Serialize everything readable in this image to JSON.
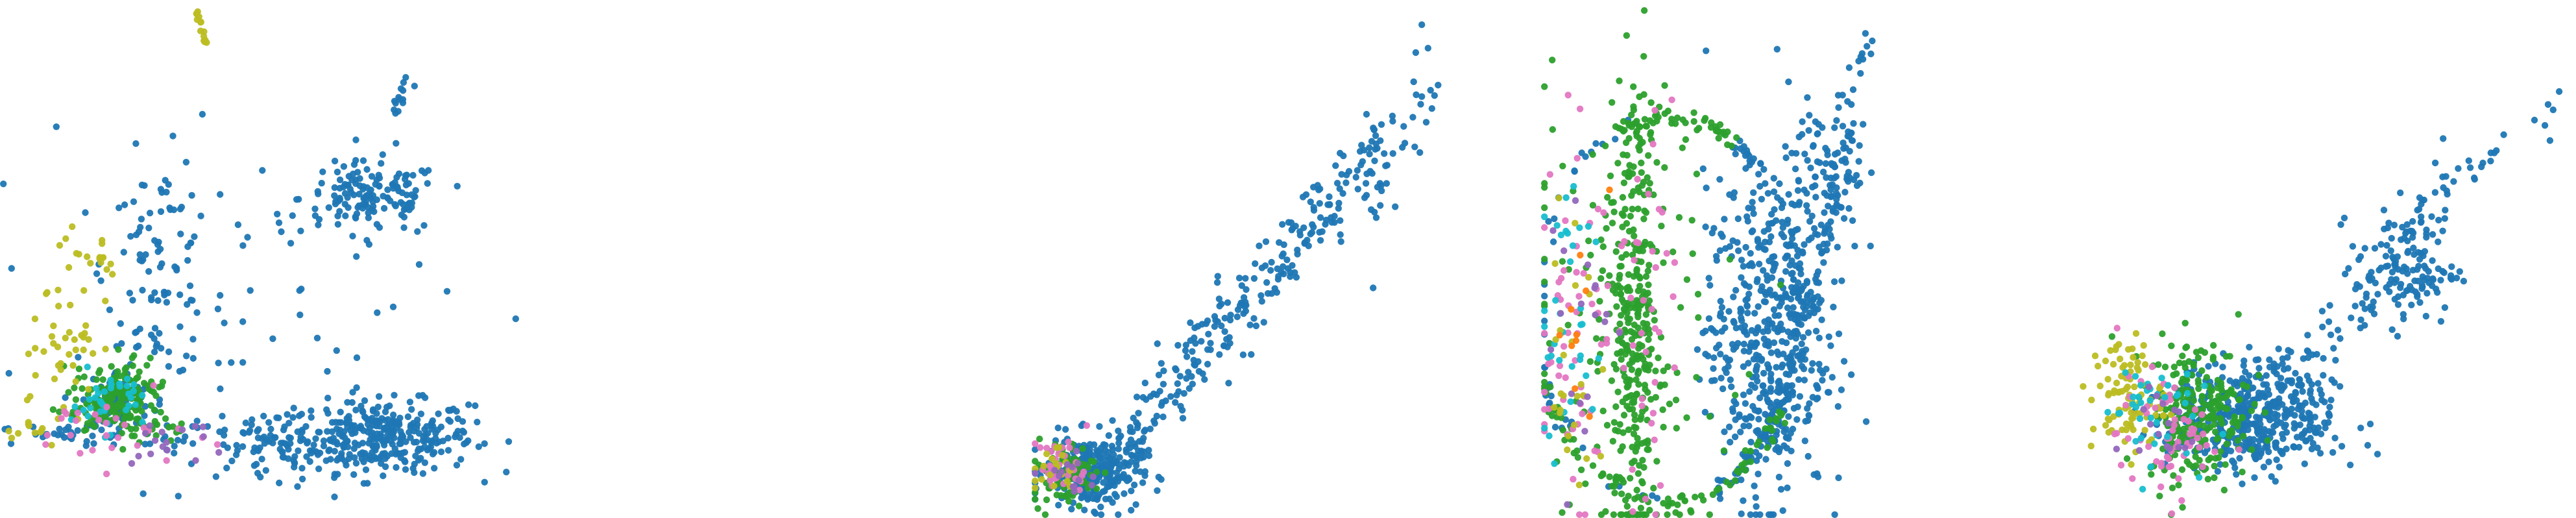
{
  "figure": {
    "panel_count": 4
  },
  "colors": {
    "blue": "#1f77b4",
    "green": "#2ca02c",
    "olive": "#bcbd22",
    "cyan": "#17becf",
    "pink": "#e377c2",
    "purple": "#9467bd",
    "orange": "#ff7f0e"
  },
  "chart_data": [
    {
      "type": "scatter",
      "title": "",
      "xlabel": "",
      "ylabel": "",
      "axes": "hidden",
      "grid": false,
      "xlim": [
        0,
        10
      ],
      "ylim": [
        0,
        10
      ],
      "series": [
        {
          "color": "blue",
          "clusters": [
            {
              "shape": "gauss",
              "cx": 7.4,
              "cy": 1.5,
              "sx": 0.9,
              "sy": 0.35,
              "n": 320
            },
            {
              "shape": "gauss",
              "cx": 7.2,
              "cy": 6.2,
              "sx": 0.7,
              "sy": 0.35,
              "n": 140
            },
            {
              "shape": "gauss",
              "cx": 3.0,
              "cy": 4.8,
              "sx": 0.5,
              "sy": 1.1,
              "n": 90
            },
            {
              "shape": "gauss",
              "cx": 5.2,
              "cy": 1.3,
              "sx": 0.9,
              "sy": 0.35,
              "n": 90
            },
            {
              "shape": "gauss",
              "cx": 2.2,
              "cy": 2.2,
              "sx": 0.35,
              "sy": 0.3,
              "n": 70
            },
            {
              "shape": "line",
              "x0": 7.6,
              "y0": 7.8,
              "x1": 8.0,
              "y1": 8.6,
              "jitter": 0.05,
              "n": 14
            },
            {
              "shape": "gauss",
              "cx": 4.5,
              "cy": 3.6,
              "sx": 2.4,
              "sy": 1.8,
              "n": 70
            },
            {
              "shape": "line",
              "x0": 0.1,
              "y0": 1.6,
              "x1": 3.5,
              "y1": 1.5,
              "jitter": 0.12,
              "n": 40
            }
          ]
        },
        {
          "color": "green",
          "clusters": [
            {
              "shape": "gauss",
              "cx": 2.2,
              "cy": 2.3,
              "sx": 0.4,
              "sy": 0.35,
              "n": 170
            },
            {
              "shape": "line",
              "x0": 1.0,
              "y0": 2.0,
              "x1": 3.6,
              "y1": 1.6,
              "jitter": 0.12,
              "n": 40
            }
          ]
        },
        {
          "color": "olive",
          "clusters": [
            {
              "shape": "gauss",
              "cx": 1.2,
              "cy": 3.4,
              "sx": 0.35,
              "sy": 0.55,
              "n": 40
            },
            {
              "shape": "line",
              "x0": 3.75,
              "y0": 10.0,
              "x1": 3.95,
              "y1": 9.2,
              "jitter": 0.02,
              "n": 16
            },
            {
              "shape": "line",
              "x0": 1.3,
              "y0": 5.4,
              "x1": 2.2,
              "y1": 4.6,
              "jitter": 0.2,
              "n": 18
            },
            {
              "shape": "line",
              "x0": 0.1,
              "y0": 1.5,
              "x1": 1.2,
              "y1": 1.8,
              "jitter": 0.1,
              "n": 12
            }
          ]
        },
        {
          "color": "cyan",
          "clusters": [
            {
              "shape": "gauss",
              "cx": 2.0,
              "cy": 2.2,
              "sx": 0.35,
              "sy": 0.3,
              "n": 35
            }
          ]
        },
        {
          "color": "pink",
          "clusters": [
            {
              "shape": "gauss",
              "cx": 2.0,
              "cy": 1.6,
              "sx": 0.8,
              "sy": 0.35,
              "n": 28
            }
          ]
        },
        {
          "color": "purple",
          "clusters": [
            {
              "shape": "gauss",
              "cx": 3.2,
              "cy": 1.4,
              "sx": 0.6,
              "sy": 0.3,
              "n": 16
            }
          ]
        }
      ]
    },
    {
      "type": "scatter",
      "title": "",
      "xlabel": "",
      "ylabel": "",
      "axes": "hidden",
      "grid": false,
      "xlim": [
        0,
        10
      ],
      "ylim": [
        0,
        10
      ],
      "series": [
        {
          "color": "blue",
          "clusters": [
            {
              "shape": "gauss",
              "cx": 1.2,
              "cy": 0.8,
              "sx": 0.5,
              "sy": 0.35,
              "n": 280
            },
            {
              "shape": "line",
              "x0": 1.5,
              "y0": 0.9,
              "x1": 7.5,
              "y1": 7.5,
              "jitter": 0.3,
              "n": 260
            },
            {
              "shape": "line",
              "x0": 6.5,
              "y0": 5.0,
              "x1": 8.6,
              "y1": 8.8,
              "jitter": 0.4,
              "n": 40
            }
          ]
        },
        {
          "color": "green",
          "clusters": [
            {
              "shape": "gauss",
              "cx": 0.55,
              "cy": 0.8,
              "sx": 0.35,
              "sy": 0.3,
              "n": 90
            }
          ]
        },
        {
          "color": "pink",
          "clusters": [
            {
              "shape": "gauss",
              "cx": 0.6,
              "cy": 0.9,
              "sx": 0.3,
              "sy": 0.3,
              "n": 35
            }
          ]
        },
        {
          "color": "olive",
          "clusters": [
            {
              "shape": "gauss",
              "cx": 0.4,
              "cy": 0.9,
              "sx": 0.25,
              "sy": 0.25,
              "n": 20
            }
          ]
        },
        {
          "color": "purple",
          "clusters": [
            {
              "shape": "gauss",
              "cx": 0.7,
              "cy": 0.7,
              "sx": 0.3,
              "sy": 0.25,
              "n": 14
            }
          ]
        }
      ]
    },
    {
      "type": "scatter",
      "title": "",
      "xlabel": "",
      "ylabel": "",
      "axes": "hidden",
      "grid": false,
      "xlim": [
        0,
        10
      ],
      "ylim": [
        0,
        10
      ],
      "series": [
        {
          "color": "blue",
          "clusters": [
            {
              "shape": "gauss",
              "cx": 5.8,
              "cy": 3.4,
              "sx": 0.8,
              "sy": 1.6,
              "n": 480
            },
            {
              "shape": "arc",
              "cx": 3.2,
              "cy": 4.0,
              "rx": 3.5,
              "ry": 3.8,
              "a0": -70,
              "a1": 60,
              "jitter": 0.1,
              "n": 120
            },
            {
              "shape": "gauss",
              "cx": 7.4,
              "cy": 6.5,
              "sx": 0.5,
              "sy": 0.9,
              "n": 110
            },
            {
              "shape": "line",
              "x0": 7.0,
              "y0": 4.0,
              "x1": 8.6,
              "y1": 9.9,
              "jitter": 0.15,
              "n": 60
            },
            {
              "shape": "arc",
              "cx": 3.2,
              "cy": 4.0,
              "rx": 3.45,
              "ry": 3.75,
              "a0": 95,
              "a1": 265,
              "jitter": 0.1,
              "n": 40
            }
          ]
        },
        {
          "color": "green",
          "clusters": [
            {
              "shape": "gauss",
              "cx": 2.3,
              "cy": 3.8,
              "sx": 0.35,
              "sy": 2.2,
              "n": 320
            },
            {
              "shape": "arc",
              "cx": 3.2,
              "cy": 4.0,
              "rx": 3.5,
              "ry": 3.8,
              "a0": 200,
              "a1": 330,
              "jitter": 0.1,
              "n": 80
            },
            {
              "shape": "arc",
              "cx": 3.2,
              "cy": 4.0,
              "rx": 3.5,
              "ry": 3.8,
              "a0": 60,
              "a1": 110,
              "jitter": 0.1,
              "n": 50
            },
            {
              "shape": "gauss",
              "cx": 1.8,
              "cy": 3.8,
              "sx": 1.6,
              "sy": 2.0,
              "n": 110
            }
          ]
        },
        {
          "color": "pink",
          "clusters": [
            {
              "shape": "gauss",
              "cx": 0.7,
              "cy": 3.6,
              "sx": 0.5,
              "sy": 1.8,
              "n": 55
            },
            {
              "shape": "gauss",
              "cx": 2.5,
              "cy": 4.0,
              "sx": 0.4,
              "sy": 1.9,
              "n": 40
            }
          ]
        },
        {
          "color": "cyan",
          "clusters": [
            {
              "shape": "gauss",
              "cx": 0.6,
              "cy": 3.8,
              "sx": 0.4,
              "sy": 1.8,
              "n": 35
            }
          ]
        },
        {
          "color": "olive",
          "clusters": [
            {
              "shape": "gauss",
              "cx": 0.8,
              "cy": 3.0,
              "sx": 0.4,
              "sy": 1.4,
              "n": 25
            }
          ]
        },
        {
          "color": "purple",
          "clusters": [
            {
              "shape": "gauss",
              "cx": 1.0,
              "cy": 4.0,
              "sx": 0.5,
              "sy": 1.5,
              "n": 18
            }
          ]
        },
        {
          "color": "orange",
          "clusters": [
            {
              "shape": "gauss",
              "cx": 0.9,
              "cy": 3.5,
              "sx": 0.4,
              "sy": 1.2,
              "n": 10
            }
          ]
        }
      ]
    },
    {
      "type": "scatter",
      "title": "",
      "xlabel": "",
      "ylabel": "",
      "axes": "hidden",
      "grid": false,
      "xlim": [
        0,
        10
      ],
      "ylim": [
        0,
        10
      ],
      "series": [
        {
          "color": "blue",
          "clusters": [
            {
              "shape": "gauss",
              "cx": 3.9,
              "cy": 1.9,
              "sx": 0.8,
              "sy": 0.55,
              "n": 480
            },
            {
              "shape": "gauss",
              "cx": 6.9,
              "cy": 4.8,
              "sx": 0.5,
              "sy": 0.55,
              "n": 120
            },
            {
              "shape": "line",
              "x0": 5.0,
              "y0": 3.0,
              "x1": 8.2,
              "y1": 7.0,
              "jitter": 0.25,
              "n": 70
            },
            {
              "shape": "line",
              "x0": 8.0,
              "y0": 6.5,
              "x1": 9.9,
              "y1": 8.2,
              "jitter": 0.15,
              "n": 14
            }
          ]
        },
        {
          "color": "green",
          "clusters": [
            {
              "shape": "gauss",
              "cx": 2.8,
              "cy": 2.0,
              "sx": 0.5,
              "sy": 0.7,
              "n": 230
            }
          ]
        },
        {
          "color": "olive",
          "clusters": [
            {
              "shape": "gauss",
              "cx": 1.4,
              "cy": 2.3,
              "sx": 0.35,
              "sy": 0.6,
              "n": 90
            }
          ]
        },
        {
          "color": "pink",
          "clusters": [
            {
              "shape": "gauss",
              "cx": 2.2,
              "cy": 1.5,
              "sx": 0.5,
              "sy": 0.6,
              "n": 60
            }
          ]
        },
        {
          "color": "cyan",
          "clusters": [
            {
              "shape": "gauss",
              "cx": 1.8,
              "cy": 2.1,
              "sx": 0.45,
              "sy": 0.55,
              "n": 40
            }
          ]
        },
        {
          "color": "purple",
          "clusters": [
            {
              "shape": "gauss",
              "cx": 2.0,
              "cy": 1.7,
              "sx": 0.4,
              "sy": 0.5,
              "n": 16
            }
          ]
        }
      ]
    }
  ]
}
